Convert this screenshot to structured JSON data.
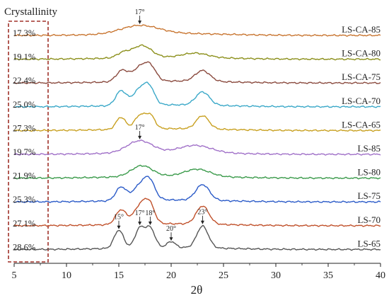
{
  "chart_data": {
    "type": "line",
    "title": "",
    "xlabel": "2θ",
    "ylabel": "",
    "xlim": [
      5,
      40
    ],
    "x_ticks": [
      "5",
      "10",
      "15",
      "20",
      "25",
      "30",
      "35",
      "40"
    ],
    "y_ticks": false,
    "grid": false,
    "legend": "none",
    "panel_label": "Crystallinity",
    "series": [
      {
        "name": "LS-CA-85",
        "crystallinity": "17.3%",
        "color": "#c87530",
        "peaks": [
          {
            "x": 17,
            "h": 0.35,
            "w": 1.8
          }
        ]
      },
      {
        "name": "LS-CA-80",
        "crystallinity": "19.1%",
        "color": "#8b8f1a",
        "peaks": [
          {
            "x": 15.4,
            "h": 0.2,
            "w": 0.6
          },
          {
            "x": 17.2,
            "h": 0.5,
            "w": 0.9
          },
          {
            "x": 22.3,
            "h": 0.18,
            "w": 1.2
          }
        ]
      },
      {
        "name": "LS-CA-75",
        "crystallinity": "22.4%",
        "color": "#8a4a3e",
        "peaks": [
          {
            "x": 15.3,
            "h": 0.45,
            "w": 0.55
          },
          {
            "x": 17.2,
            "h": 0.65,
            "w": 0.8
          },
          {
            "x": 18.1,
            "h": 0.35,
            "w": 0.5
          },
          {
            "x": 23.0,
            "h": 0.45,
            "w": 0.7
          }
        ]
      },
      {
        "name": "LS-CA-70",
        "crystallinity": "25.0%",
        "color": "#3aa8c8",
        "peaks": [
          {
            "x": 15.2,
            "h": 0.6,
            "w": 0.5
          },
          {
            "x": 17.2,
            "h": 0.75,
            "w": 0.75
          },
          {
            "x": 18.0,
            "h": 0.4,
            "w": 0.45
          },
          {
            "x": 23.0,
            "h": 0.55,
            "w": 0.65
          }
        ]
      },
      {
        "name": "LS-CA-65",
        "crystallinity": "27.3%",
        "color": "#c8a020",
        "peaks": [
          {
            "x": 15.2,
            "h": 0.5,
            "w": 0.45
          },
          {
            "x": 17.0,
            "h": 0.55,
            "w": 0.5
          },
          {
            "x": 18.0,
            "h": 0.55,
            "w": 0.45
          },
          {
            "x": 23.0,
            "h": 0.55,
            "w": 0.6
          }
        ]
      },
      {
        "name": "LS-85",
        "crystallinity": "19.7%",
        "color": "#a070c8",
        "peaks": [
          {
            "x": 17.0,
            "h": 0.5,
            "w": 1.2
          },
          {
            "x": 22.3,
            "h": 0.3,
            "w": 1.5
          }
        ]
      },
      {
        "name": "LS-80",
        "crystallinity": "21.9%",
        "color": "#3a9a4a",
        "peaks": [
          {
            "x": 17.2,
            "h": 0.45,
            "w": 1.0
          },
          {
            "x": 22.5,
            "h": 0.3,
            "w": 1.2
          }
        ]
      },
      {
        "name": "LS-75",
        "crystallinity": "25.3%",
        "color": "#2a5ac8",
        "peaks": [
          {
            "x": 15.2,
            "h": 0.55,
            "w": 0.5
          },
          {
            "x": 17.3,
            "h": 0.75,
            "w": 0.8
          },
          {
            "x": 18.0,
            "h": 0.4,
            "w": 0.45
          },
          {
            "x": 23.0,
            "h": 0.65,
            "w": 0.65
          }
        ]
      },
      {
        "name": "LS-70",
        "crystallinity": "27.1%",
        "color": "#c0502a",
        "peaks": [
          {
            "x": 15.2,
            "h": 0.6,
            "w": 0.5
          },
          {
            "x": 17.2,
            "h": 0.85,
            "w": 0.7
          },
          {
            "x": 18.0,
            "h": 0.5,
            "w": 0.45
          },
          {
            "x": 23.0,
            "h": 0.75,
            "w": 0.6
          }
        ]
      },
      {
        "name": "LS-65",
        "crystallinity": "28.6%",
        "color": "#555555",
        "peaks": [
          {
            "x": 15.0,
            "h": 0.75,
            "w": 0.45
          },
          {
            "x": 17.0,
            "h": 0.8,
            "w": 0.45
          },
          {
            "x": 18.0,
            "h": 0.8,
            "w": 0.45
          },
          {
            "x": 20.0,
            "h": 0.25,
            "w": 0.4
          },
          {
            "x": 23.0,
            "h": 0.9,
            "w": 0.55
          }
        ]
      }
    ],
    "annotations": [
      {
        "text": "17°",
        "series": "LS-CA-85",
        "x": 17
      },
      {
        "text": "17°",
        "series": "LS-85",
        "x": 17
      },
      {
        "text": "15°",
        "series": "LS-65",
        "x": 15
      },
      {
        "text": "17°",
        "series": "LS-65",
        "x": 17
      },
      {
        "text": "18°",
        "series": "LS-65",
        "x": 18
      },
      {
        "text": "20°",
        "series": "LS-65",
        "x": 20
      },
      {
        "text": "23°",
        "series": "LS-65",
        "x": 23
      }
    ]
  }
}
